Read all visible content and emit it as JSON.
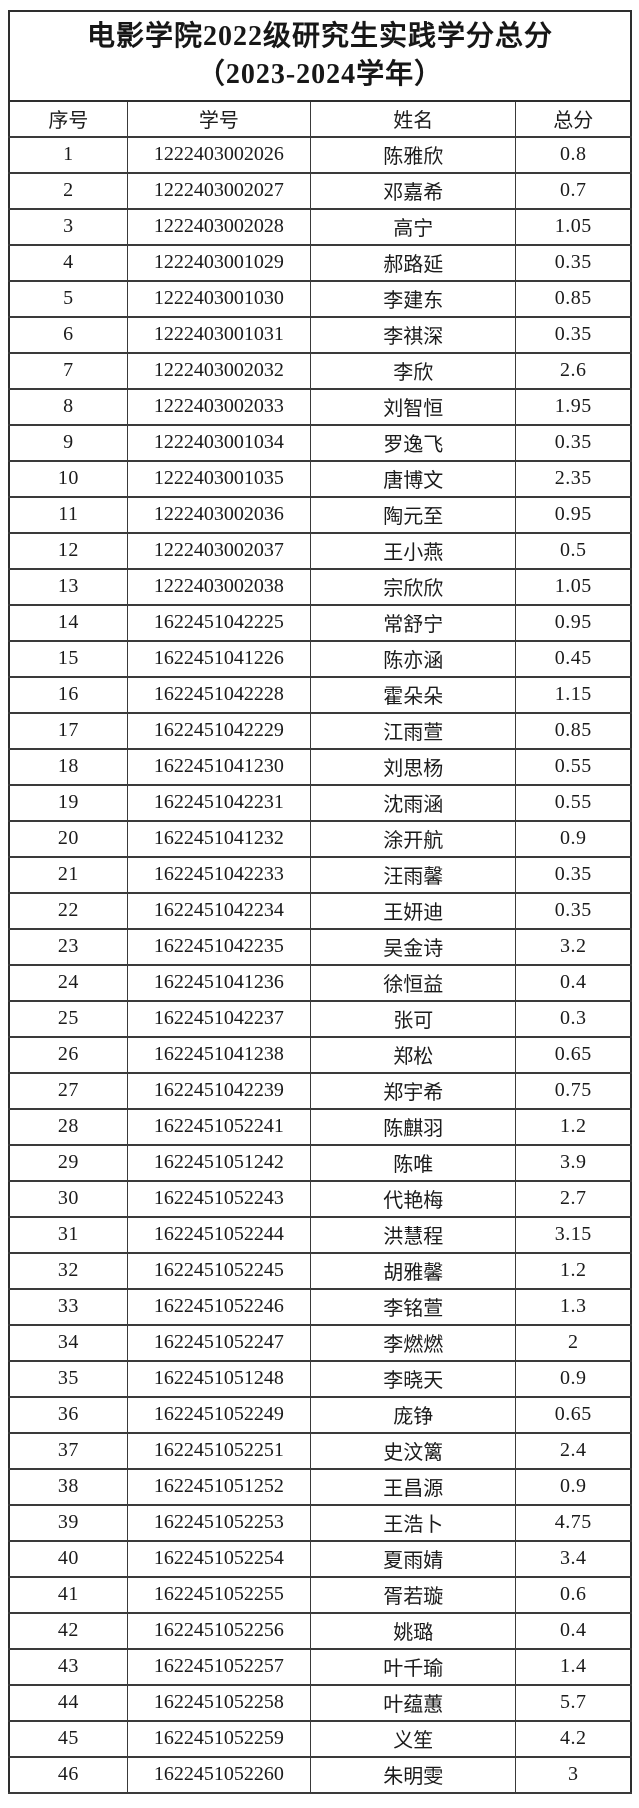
{
  "document": {
    "title_line1": "电影学院2022级研究生实践学分总分",
    "title_line2": "（2023-2024学年）"
  },
  "table": {
    "headers": [
      "序号",
      "学号",
      "姓名",
      "总分"
    ],
    "rows": [
      [
        "1",
        "1222403002026",
        "陈雅欣",
        "0.8"
      ],
      [
        "2",
        "1222403002027",
        "邓嘉希",
        "0.7"
      ],
      [
        "3",
        "1222403002028",
        "高宁",
        "1.05"
      ],
      [
        "4",
        "1222403001029",
        "郝路延",
        "0.35"
      ],
      [
        "5",
        "1222403001030",
        "李建东",
        "0.85"
      ],
      [
        "6",
        "1222403001031",
        "李祺深",
        "0.35"
      ],
      [
        "7",
        "1222403002032",
        "李欣",
        "2.6"
      ],
      [
        "8",
        "1222403002033",
        "刘智恒",
        "1.95"
      ],
      [
        "9",
        "1222403001034",
        "罗逸飞",
        "0.35"
      ],
      [
        "10",
        "1222403001035",
        "唐博文",
        "2.35"
      ],
      [
        "11",
        "1222403002036",
        "陶元至",
        "0.95"
      ],
      [
        "12",
        "1222403002037",
        "王小燕",
        "0.5"
      ],
      [
        "13",
        "1222403002038",
        "宗欣欣",
        "1.05"
      ],
      [
        "14",
        "1622451042225",
        "常舒宁",
        "0.95"
      ],
      [
        "15",
        "1622451041226",
        "陈亦涵",
        "0.45"
      ],
      [
        "16",
        "1622451042228",
        "霍朵朵",
        "1.15"
      ],
      [
        "17",
        "1622451042229",
        "江雨萱",
        "0.85"
      ],
      [
        "18",
        "1622451041230",
        "刘思杨",
        "0.55"
      ],
      [
        "19",
        "1622451042231",
        "沈雨涵",
        "0.55"
      ],
      [
        "20",
        "1622451041232",
        "涂开航",
        "0.9"
      ],
      [
        "21",
        "1622451042233",
        "汪雨馨",
        "0.35"
      ],
      [
        "22",
        "1622451042234",
        "王妍迪",
        "0.35"
      ],
      [
        "23",
        "1622451042235",
        "吴金诗",
        "3.2"
      ],
      [
        "24",
        "1622451041236",
        "徐恒益",
        "0.4"
      ],
      [
        "25",
        "1622451042237",
        "张可",
        "0.3"
      ],
      [
        "26",
        "1622451041238",
        "郑松",
        "0.65"
      ],
      [
        "27",
        "1622451042239",
        "郑宇希",
        "0.75"
      ],
      [
        "28",
        "1622451052241",
        "陈麒羽",
        "1.2"
      ],
      [
        "29",
        "1622451051242",
        "陈唯",
        "3.9"
      ],
      [
        "30",
        "1622451052243",
        "代艳梅",
        "2.7"
      ],
      [
        "31",
        "1622451052244",
        "洪慧程",
        "3.15"
      ],
      [
        "32",
        "1622451052245",
        "胡雅馨",
        "1.2"
      ],
      [
        "33",
        "1622451052246",
        "李铭萱",
        "1.3"
      ],
      [
        "34",
        "1622451052247",
        "李燃燃",
        "2"
      ],
      [
        "35",
        "1622451051248",
        "李晓天",
        "0.9"
      ],
      [
        "36",
        "1622451052249",
        "庞铮",
        "0.65"
      ],
      [
        "37",
        "1622451052251",
        "史汶篱",
        "2.4"
      ],
      [
        "38",
        "1622451051252",
        "王昌源",
        "0.9"
      ],
      [
        "39",
        "1622451052253",
        "王浩卜",
        "4.75"
      ],
      [
        "40",
        "1622451052254",
        "夏雨婧",
        "3.4"
      ],
      [
        "41",
        "1622451052255",
        "胥若璇",
        "0.6"
      ],
      [
        "42",
        "1622451052256",
        "姚璐",
        "0.4"
      ],
      [
        "43",
        "1622451052257",
        "叶千瑜",
        "1.4"
      ],
      [
        "44",
        "1622451052258",
        "叶蕴蕙",
        "5.7"
      ],
      [
        "45",
        "1622451052259",
        "义笙",
        "4.2"
      ],
      [
        "46",
        "1622451052260",
        "朱明雯",
        "3"
      ]
    ]
  }
}
